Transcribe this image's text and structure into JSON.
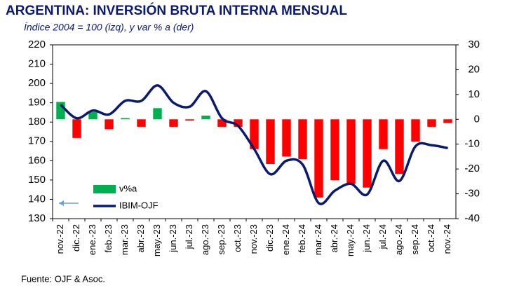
{
  "chart_data": {
    "type": "bar-line",
    "title": "ARGENTINA: INVERSIÓN BRUTA INTERNA MENSUAL",
    "subtitle": "Índice 2004 = 100 (izq), y var % a (der)",
    "source": "Fuente: OJF & Asoc.",
    "categories": [
      "nov.-22",
      "dic.-22",
      "ene.-23",
      "feb.-23",
      "mar.-23",
      "abr.-23",
      "may.-23",
      "jun.-23",
      "jul.-23",
      "ago.-23",
      "sep.-23",
      "oct.-23",
      "nov.-23",
      "dic.-23",
      "ene.-24",
      "feb.-24",
      "mar.-24",
      "abr.-24",
      "may.-24",
      "jun.-24",
      "jul.-24",
      "ago.-24",
      "sep.-24",
      "oct.-24",
      "nov.-24"
    ],
    "series": [
      {
        "name": "v%a",
        "type": "bar",
        "axis": "y2",
        "color": "#00b050",
        "negative_color": "#ff0000",
        "values": [
          7,
          -7.5,
          3,
          -4,
          0.5,
          -3,
          4.5,
          -3,
          -0.5,
          1.5,
          -3,
          -3,
          -12,
          -18,
          -15,
          -16,
          -31.5,
          -24.5,
          -26,
          -27.5,
          -12,
          -22,
          -9,
          -3,
          -1.5
        ]
      },
      {
        "name": "IBIM-OJF",
        "type": "line",
        "color": "#0a1a6e",
        "values": [
          189,
          182,
          186,
          184,
          191,
          191,
          199,
          190,
          188,
          196,
          182,
          178,
          166,
          153,
          160,
          158,
          138,
          144.5,
          148,
          142.5,
          160,
          149.5,
          167.5,
          168,
          166.5
        ]
      }
    ],
    "ylim": [
      130,
      220
    ],
    "yticks": [
      130,
      140,
      150,
      160,
      170,
      180,
      190,
      200,
      210,
      220
    ],
    "y2lim": [
      -40,
      30
    ],
    "y2ticks": [
      -40,
      -30,
      -20,
      -10,
      0,
      10,
      20,
      30
    ],
    "grid": false
  }
}
